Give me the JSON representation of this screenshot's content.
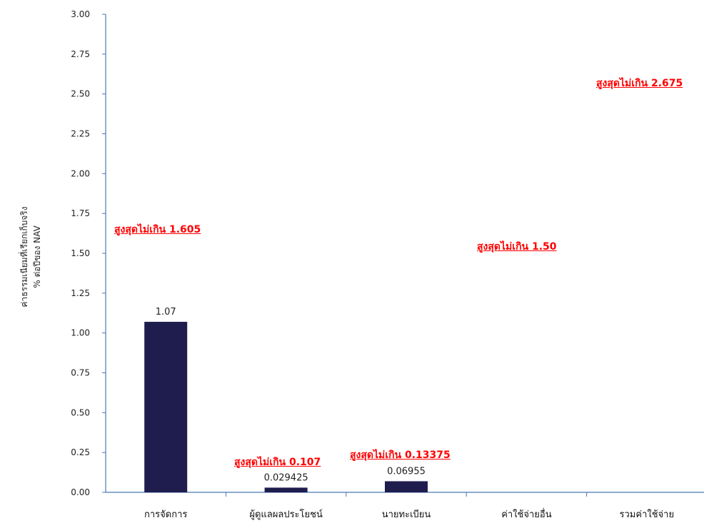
{
  "chart_data": {
    "type": "bar",
    "categories": [
      "การจัดการ",
      "ผู้ดูแลผลประโยชน์",
      "นายทะเบียน",
      "ค่าใช้จ่ายอื่น",
      "รวมค่าใช้จ่าย"
    ],
    "values": [
      1.07,
      0.029425,
      0.06955,
      null,
      null
    ],
    "data_labels": [
      "1.07",
      "0.029425",
      "0.06955",
      "",
      ""
    ],
    "ylabel_lines": [
      "ค่าธรรมเนียมที่เรียกเก็บจริง",
      "% ต่อปีของ NAV"
    ],
    "ylim": [
      0,
      3
    ],
    "yticks": [
      "0.00",
      "0.25",
      "0.50",
      "0.75",
      "1.00",
      "1.25",
      "1.50",
      "1.75",
      "2.00",
      "2.25",
      "2.50",
      "2.75",
      "3.00"
    ],
    "bar_color": "#1f1d4d",
    "grid": false
  },
  "annotations": [
    {
      "text": "สูงสุดไม่เกิน 1.605",
      "category": 0
    },
    {
      "text": "สูงสุดไม่เกิน 0.107",
      "category": 1
    },
    {
      "text": "สูงสุดไม่เกิน 0.13375",
      "category": 2
    },
    {
      "text": "สูงสุดไม่เกิน 1.50",
      "category": 3
    },
    {
      "text": "สูงสุดไม่เกิน 2.675",
      "category": 4
    }
  ],
  "annotation_color": "#ff0000"
}
